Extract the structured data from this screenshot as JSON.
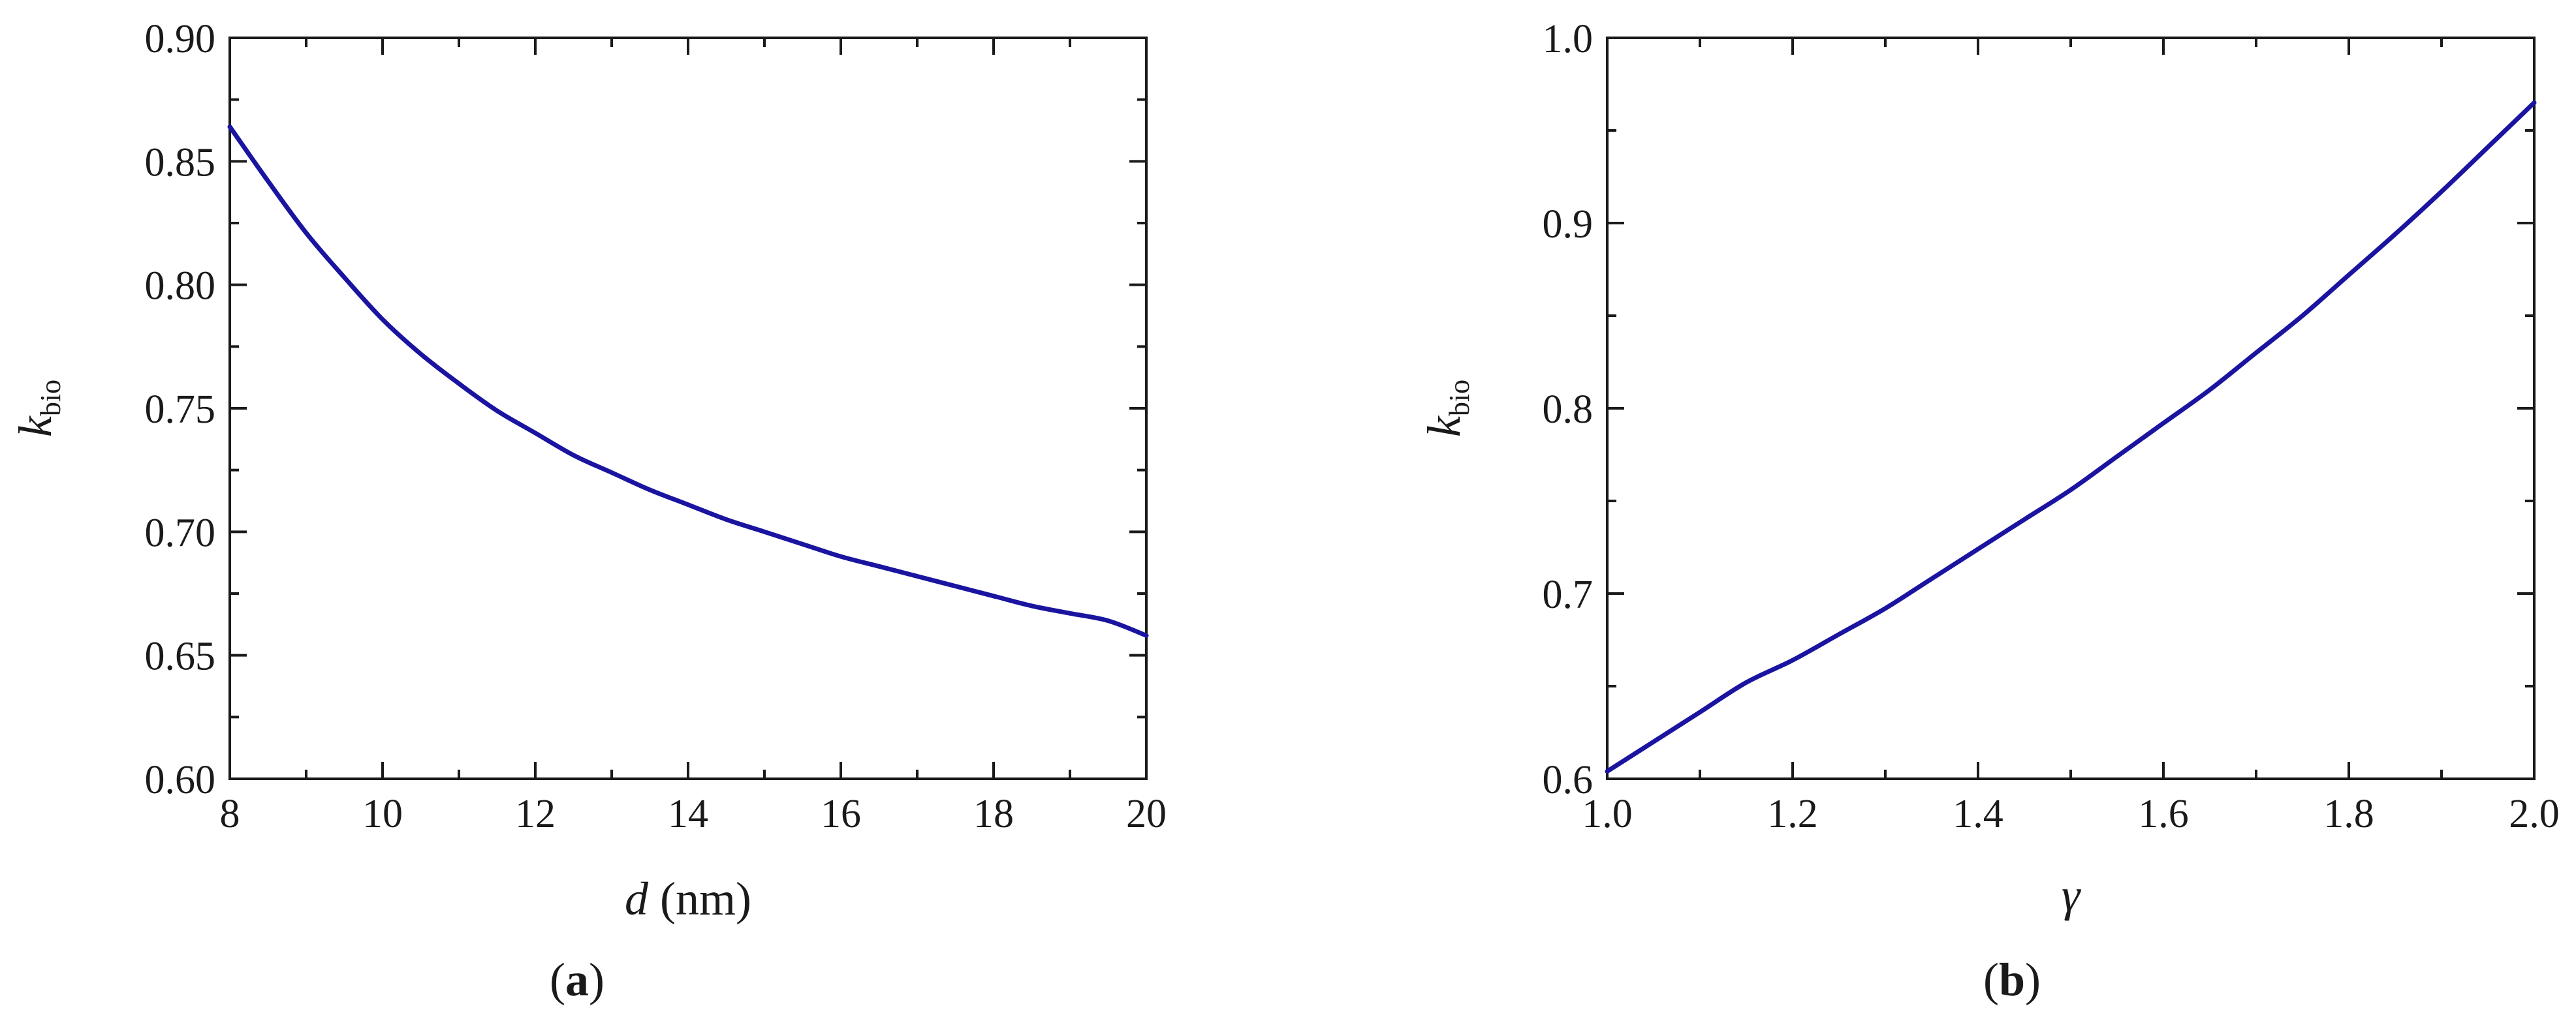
{
  "colors": {
    "line": "#1a14a0",
    "axis": "#1a1a1a"
  },
  "chart_data": [
    {
      "type": "line",
      "caption": "a",
      "title": "",
      "xlabel": {
        "symbol": "d",
        "unit": "(nm)"
      },
      "ylabel": {
        "symbol": "k",
        "subscript": "bio"
      },
      "xlim": [
        8,
        20
      ],
      "ylim": [
        0.6,
        0.9
      ],
      "x_ticks": [
        8,
        10,
        12,
        14,
        16,
        18,
        20
      ],
      "y_ticks": [
        0.6,
        0.65,
        0.7,
        0.75,
        0.8,
        0.85,
        0.9
      ],
      "x_tick_labels": [
        "8",
        "10",
        "12",
        "14",
        "16",
        "18",
        "20"
      ],
      "y_tick_labels": [
        "0.60",
        "0.65",
        "0.70",
        "0.75",
        "0.80",
        "0.85",
        "0.90"
      ],
      "grid": false,
      "legend": "none",
      "series": [
        {
          "x": [
            8,
            8.5,
            9,
            9.5,
            10,
            10.5,
            11,
            11.5,
            12,
            12.5,
            13,
            13.5,
            14,
            14.5,
            15,
            15.5,
            16,
            16.5,
            17,
            17.5,
            18,
            18.5,
            19,
            19.5,
            20
          ],
          "values": [
            0.864,
            0.842,
            0.821,
            0.803,
            0.786,
            0.772,
            0.76,
            0.749,
            0.74,
            0.731,
            0.724,
            0.717,
            0.711,
            0.705,
            0.7,
            0.695,
            0.69,
            0.686,
            0.682,
            0.678,
            0.674,
            0.67,
            0.667,
            0.664,
            0.658
          ]
        }
      ]
    },
    {
      "type": "line",
      "caption": "b",
      "title": "",
      "xlabel": {
        "symbol": "γ",
        "unit": ""
      },
      "ylabel": {
        "symbol": "k",
        "subscript": "bio"
      },
      "xlim": [
        1.0,
        2.0
      ],
      "ylim": [
        0.6,
        1.0
      ],
      "x_ticks": [
        1.0,
        1.2,
        1.4,
        1.6,
        1.8,
        2.0
      ],
      "y_ticks": [
        0.6,
        0.7,
        0.8,
        0.9,
        1.0
      ],
      "x_tick_labels": [
        "1.0",
        "1.2",
        "1.4",
        "1.6",
        "1.8",
        "2.0"
      ],
      "y_tick_labels": [
        "0.6",
        "0.7",
        "0.8",
        "0.9",
        "1.0"
      ],
      "grid": false,
      "legend": "none",
      "series": [
        {
          "x": [
            1.0,
            1.05,
            1.1,
            1.15,
            1.2,
            1.25,
            1.3,
            1.35,
            1.4,
            1.45,
            1.5,
            1.55,
            1.6,
            1.65,
            1.7,
            1.75,
            1.8,
            1.85,
            1.9,
            1.95,
            2.0
          ],
          "values": [
            0.604,
            0.62,
            0.636,
            0.652,
            0.664,
            0.678,
            0.692,
            0.708,
            0.724,
            0.74,
            0.756,
            0.774,
            0.792,
            0.81,
            0.83,
            0.85,
            0.872,
            0.894,
            0.917,
            0.941,
            0.965
          ]
        }
      ]
    }
  ]
}
